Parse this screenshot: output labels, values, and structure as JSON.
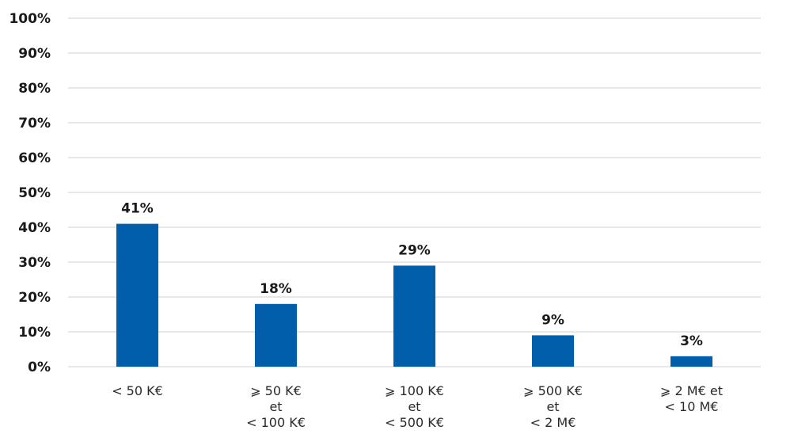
{
  "chart_data": {
    "type": "bar",
    "categories": [
      [
        "< 50 K€"
      ],
      [
        "⩾ 50 K€",
        "et",
        "< 100 K€"
      ],
      [
        "⩾ 100 K€",
        "et",
        "< 500 K€"
      ],
      [
        "⩾ 500 K€",
        "et",
        "< 2 M€"
      ],
      [
        "⩾ 2 M€ et",
        "< 10 M€"
      ]
    ],
    "values": [
      41,
      18,
      29,
      9,
      3
    ],
    "data_labels": [
      "41%",
      "18%",
      "29%",
      "9%",
      "3%"
    ],
    "ylim": [
      0,
      100
    ],
    "yticks": [
      0,
      10,
      20,
      30,
      40,
      50,
      60,
      70,
      80,
      90,
      100
    ],
    "ytick_labels": [
      "0%",
      "10%",
      "20%",
      "30%",
      "40%",
      "50%",
      "60%",
      "70%",
      "80%",
      "90%",
      "100%"
    ],
    "title": "",
    "xlabel": "",
    "ylabel": "",
    "grid": true,
    "legend": "none",
    "colors": {
      "bar": "#005EAA",
      "grid": "#CFCFCF",
      "text": "#1A1A1A"
    }
  }
}
